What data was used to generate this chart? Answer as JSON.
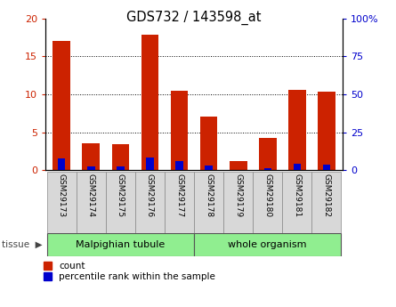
{
  "title": "GDS732 / 143598_at",
  "samples": [
    "GSM29173",
    "GSM29174",
    "GSM29175",
    "GSM29176",
    "GSM29177",
    "GSM29178",
    "GSM29179",
    "GSM29180",
    "GSM29181",
    "GSM29182"
  ],
  "count": [
    17.0,
    3.6,
    3.4,
    17.8,
    10.5,
    7.1,
    1.2,
    4.3,
    10.6,
    10.4
  ],
  "percentile": [
    8.0,
    2.4,
    2.8,
    8.2,
    6.3,
    3.4,
    0.5,
    1.7,
    4.3,
    3.8
  ],
  "tissue_groups": [
    {
      "label": "Malpighian tubule",
      "start": 0,
      "end": 5,
      "color": "#90ee90"
    },
    {
      "label": "whole organism",
      "start": 5,
      "end": 10,
      "color": "#90ee90"
    }
  ],
  "bar_color": "#cc2200",
  "percentile_color": "#0000cc",
  "ylim_left": [
    0,
    20
  ],
  "ylim_right": [
    0,
    100
  ],
  "yticks_left": [
    0,
    5,
    10,
    15,
    20
  ],
  "yticks_right": [
    0,
    25,
    50,
    75,
    100
  ],
  "ytick_labels_right": [
    "0",
    "25",
    "50",
    "75",
    "100%"
  ],
  "legend_count_label": "count",
  "legend_pct_label": "percentile rank within the sample",
  "tissue_label": "tissue",
  "tissue_label_color": "#444444",
  "label_bg": "#d8d8d8",
  "label_edge": "#888888"
}
